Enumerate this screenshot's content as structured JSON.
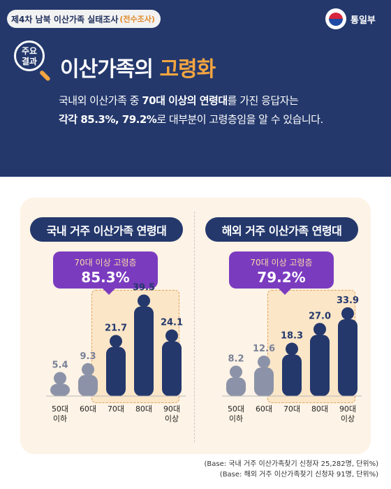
{
  "header": {
    "tag": "제4차 남북 이산가족 실태조사",
    "tag_sub": "(전수조사)",
    "logo": "통일부",
    "badge_line1": "주요",
    "badge_line2": "결과",
    "title_main": "이산가족의 ",
    "title_highlight": "고령화",
    "desc_l1_a": "국내외 이산가족 중 ",
    "desc_l1_b": "70대 이상의 연령대",
    "desc_l1_c": "를 가진 응답자는",
    "desc_l2_a": "각각 85.3%, 79.2%",
    "desc_l2_b": "로 대부분이 고령층임을 알 수 있습니다."
  },
  "chart_data": [
    {
      "type": "bar",
      "title": "국내 거주 이산가족 연령대",
      "categories": [
        "50대\n이하",
        "60대",
        "70대",
        "80대",
        "90대\n이상"
      ],
      "values": [
        5.4,
        9.3,
        21.7,
        39.5,
        24.1
      ],
      "value_labels": [
        "5.4",
        "9.3",
        "21.7",
        "39.5",
        "24.1"
      ],
      "highlight_label": "70대 이상 고령층",
      "highlight_value": "85.3%"
    },
    {
      "type": "bar",
      "title": "해외 거주 이산가족 연령대",
      "categories": [
        "50대\n이하",
        "60대",
        "70대",
        "80대",
        "90대\n이상"
      ],
      "values": [
        8.2,
        12.6,
        18.3,
        27.0,
        33.9
      ],
      "value_labels": [
        "8.2",
        "12.6",
        "18.3",
        "27.0",
        "33.9"
      ],
      "highlight_label": "70대 이상 고령층",
      "highlight_value": "79.2%"
    }
  ],
  "footnotes": [
    "(Base: 국내 거주 이산가족찾기 신청자 25,282명, 단위%)",
    "(Base: 해외 거주 이산가족찾기 신청자 91명, 단위%)"
  ],
  "colors": {
    "navy": "#24386c",
    "gray": "#8c93a8",
    "accent": "#f4a540",
    "purple": "#7b3bbf",
    "panel": "#fdf3e6"
  }
}
